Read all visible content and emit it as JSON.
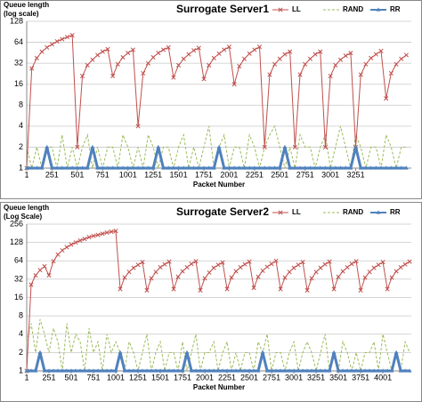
{
  "chart_data": [
    {
      "type": "line",
      "title": "Surrogate Server1",
      "ylabel": [
        "Queue length",
        "(log scale)"
      ],
      "xlabel": "Packet Number",
      "log_scale": true,
      "grid": true,
      "legend": "top-right",
      "xlim": [
        1,
        3800
      ],
      "xticks": [
        1,
        251,
        501,
        751,
        1001,
        1251,
        1501,
        1751,
        2001,
        2251,
        2501,
        2751,
        3001,
        3251
      ],
      "ylim": [
        1,
        128
      ],
      "yticks": [
        1,
        2,
        4,
        8,
        16,
        32,
        64,
        128
      ],
      "x": [
        1,
        51,
        101,
        151,
        201,
        251,
        301,
        351,
        401,
        451,
        501,
        551,
        601,
        651,
        701,
        751,
        801,
        851,
        901,
        951,
        1001,
        1051,
        1101,
        1151,
        1201,
        1251,
        1301,
        1351,
        1401,
        1451,
        1501,
        1551,
        1601,
        1651,
        1701,
        1751,
        1801,
        1851,
        1901,
        1951,
        2001,
        2051,
        2101,
        2151,
        2201,
        2251,
        2301,
        2351,
        2401,
        2451,
        2501,
        2551,
        2601,
        2651,
        2701,
        2751,
        2801,
        2851,
        2901,
        2951,
        3001,
        3051,
        3101,
        3151,
        3201,
        3251,
        3301,
        3351,
        3401,
        3451,
        3501,
        3551,
        3601,
        3651,
        3701,
        3751
      ],
      "series": [
        {
          "name": "LL",
          "color": "#c0504d",
          "values": [
            1,
            27,
            38,
            47,
            54,
            60,
            66,
            71,
            76,
            81,
            2,
            21,
            30,
            36,
            42,
            47,
            51,
            21,
            31,
            39,
            45,
            50,
            4,
            23,
            32,
            39,
            45,
            50,
            54,
            20,
            30,
            37,
            43,
            49,
            53,
            19,
            30,
            38,
            44,
            50,
            55,
            16,
            29,
            37,
            44,
            50,
            55,
            2,
            22,
            31,
            37,
            43,
            47,
            2,
            22,
            31,
            37,
            43,
            47,
            2,
            21,
            30,
            36,
            41,
            45,
            2,
            22,
            31,
            38,
            43,
            48,
            10,
            23,
            31,
            37,
            42
          ]
        },
        {
          "name": "RAND",
          "color": "#9bbb59",
          "values": [
            2,
            1,
            2,
            1,
            2,
            2,
            1,
            3,
            1,
            2,
            1,
            2,
            3,
            1,
            2,
            1,
            2,
            2,
            1,
            3,
            2,
            1,
            2,
            1,
            3,
            2,
            1,
            2,
            2,
            1,
            2,
            3,
            1,
            2,
            1,
            2,
            4,
            1,
            2,
            3,
            1,
            2,
            2,
            1,
            3,
            2,
            1,
            2,
            3,
            4,
            2,
            1,
            2,
            1,
            3,
            2,
            2,
            1,
            2,
            3,
            1,
            2,
            4,
            2,
            1,
            3,
            2,
            1,
            2,
            2,
            1,
            3,
            2,
            1,
            2,
            2
          ]
        },
        {
          "name": "RR",
          "color": "#4f81bd",
          "values": [
            1,
            1,
            1,
            1,
            2,
            1,
            1,
            1,
            1,
            1,
            1,
            1,
            1,
            2,
            1,
            1,
            1,
            1,
            1,
            1,
            1,
            1,
            1,
            1,
            1,
            1,
            2,
            1,
            1,
            1,
            1,
            1,
            1,
            1,
            1,
            1,
            1,
            1,
            2,
            1,
            1,
            1,
            1,
            1,
            1,
            1,
            1,
            1,
            1,
            1,
            1,
            2,
            1,
            1,
            1,
            1,
            1,
            1,
            1,
            1,
            1,
            1,
            1,
            1,
            1,
            2,
            1,
            1,
            1,
            1,
            1,
            1,
            1,
            1,
            1,
            1
          ]
        }
      ]
    },
    {
      "type": "line",
      "title": "Surrogate Server2",
      "ylabel": [
        "Queue length",
        "(Log Scale)"
      ],
      "xlabel": "Packet Number",
      "log_scale": true,
      "grid": true,
      "legend": "top-right",
      "xlim": [
        1,
        4320
      ],
      "xticks": [
        1,
        251,
        501,
        751,
        1001,
        1251,
        1501,
        1751,
        2001,
        2251,
        2501,
        2751,
        3001,
        3251,
        3501,
        3751,
        4001
      ],
      "ylim": [
        1,
        256
      ],
      "yticks": [
        1,
        2,
        4,
        8,
        16,
        32,
        64,
        128,
        256
      ],
      "x": [
        1,
        51,
        101,
        151,
        201,
        251,
        301,
        351,
        401,
        451,
        501,
        551,
        601,
        651,
        701,
        751,
        801,
        851,
        901,
        951,
        1001,
        1051,
        1101,
        1151,
        1201,
        1251,
        1301,
        1351,
        1401,
        1451,
        1501,
        1551,
        1601,
        1651,
        1701,
        1751,
        1801,
        1851,
        1901,
        1951,
        2001,
        2051,
        2101,
        2151,
        2201,
        2251,
        2301,
        2351,
        2401,
        2451,
        2501,
        2551,
        2601,
        2651,
        2701,
        2751,
        2801,
        2851,
        2901,
        2951,
        3001,
        3051,
        3101,
        3151,
        3201,
        3251,
        3301,
        3351,
        3401,
        3451,
        3501,
        3551,
        3601,
        3651,
        3701,
        3751,
        3801,
        3851,
        3901,
        3951,
        4001,
        4051,
        4101,
        4151,
        4201,
        4251,
        4301
      ],
      "series": [
        {
          "name": "LL",
          "color": "#c0504d",
          "values": [
            1,
            26,
            37,
            45,
            52,
            37,
            63,
            81,
            95,
            107,
            118,
            128,
            138,
            146,
            156,
            164,
            170,
            178,
            186,
            192,
            198,
            22,
            34,
            42,
            49,
            55,
            61,
            21,
            33,
            42,
            50,
            56,
            62,
            22,
            35,
            43,
            50,
            57,
            63,
            21,
            33,
            41,
            49,
            55,
            60,
            22,
            34,
            43,
            50,
            56,
            62,
            23,
            35,
            44,
            51,
            57,
            64,
            22,
            34,
            42,
            49,
            55,
            61,
            21,
            33,
            42,
            49,
            56,
            62,
            22,
            35,
            43,
            50,
            57,
            63,
            21,
            34,
            42,
            49,
            55,
            61,
            22,
            34,
            43,
            50,
            56,
            62
          ]
        },
        {
          "name": "RAND",
          "color": "#9bbb59",
          "values": [
            3,
            6,
            2,
            7,
            4,
            2,
            5,
            3,
            1,
            6,
            2,
            4,
            3,
            1,
            5,
            2,
            3,
            1,
            4,
            2,
            3,
            2,
            1,
            3,
            2,
            1,
            2,
            4,
            1,
            2,
            3,
            1,
            2,
            2,
            1,
            3,
            1,
            2,
            4,
            1,
            2,
            2,
            3,
            1,
            2,
            3,
            1,
            2,
            1,
            2,
            2,
            1,
            3,
            2,
            4,
            1,
            2,
            2,
            1,
            2,
            3,
            1,
            2,
            3,
            2,
            1,
            2,
            4,
            1,
            2,
            1,
            3,
            2,
            1,
            2,
            1,
            2,
            2,
            3,
            1,
            4,
            2,
            1,
            2,
            1,
            3,
            2
          ]
        },
        {
          "name": "RR",
          "color": "#4f81bd",
          "values": [
            1,
            1,
            1,
            2,
            1,
            1,
            1,
            1,
            1,
            1,
            1,
            1,
            1,
            1,
            1,
            1,
            1,
            1,
            1,
            1,
            1,
            2,
            1,
            1,
            1,
            1,
            1,
            1,
            1,
            1,
            1,
            1,
            1,
            1,
            1,
            1,
            2,
            1,
            1,
            1,
            1,
            1,
            1,
            1,
            1,
            1,
            1,
            1,
            1,
            1,
            1,
            1,
            1,
            2,
            1,
            1,
            1,
            1,
            1,
            1,
            1,
            1,
            1,
            1,
            1,
            1,
            1,
            1,
            1,
            2,
            1,
            1,
            1,
            1,
            1,
            1,
            1,
            1,
            1,
            1,
            1,
            1,
            1,
            2,
            1,
            1,
            1
          ]
        }
      ]
    }
  ]
}
